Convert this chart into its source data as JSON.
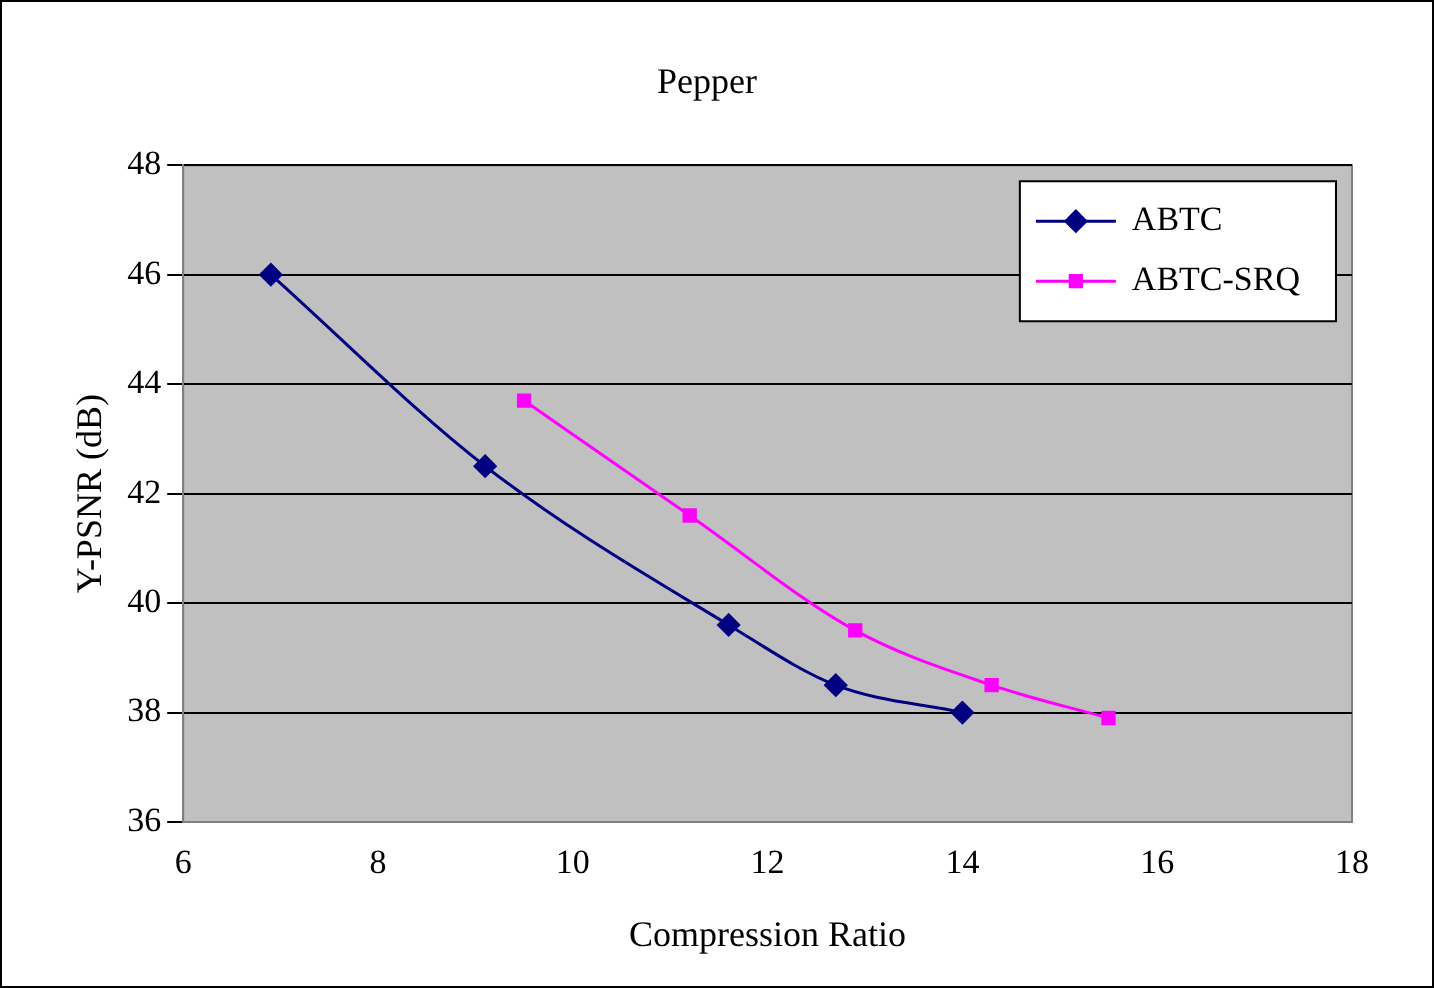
{
  "chart_data": {
    "type": "line",
    "title": "Pepper",
    "xlabel": "Compression Ratio",
    "ylabel": "Y-PSNR (dB)",
    "xlim": [
      6,
      18
    ],
    "xticks": [
      6,
      8,
      10,
      12,
      14,
      16,
      18
    ],
    "ylim": [
      36,
      48
    ],
    "yticks": [
      36,
      38,
      40,
      42,
      44,
      46,
      48
    ],
    "grid": "y",
    "legend": "top right",
    "series": [
      {
        "name": "ABTC",
        "color": "#000080",
        "marker": "diamond",
        "x": [
          6.9,
          9.1,
          11.6,
          12.7,
          14.0
        ],
        "values": [
          46.0,
          42.5,
          39.6,
          38.5,
          38.0
        ]
      },
      {
        "name": "ABTC-SRQ",
        "color": "#ff00ff",
        "marker": "square",
        "x": [
          9.5,
          11.2,
          12.9,
          14.3,
          15.5
        ],
        "values": [
          43.7,
          41.6,
          39.5,
          38.5,
          37.9
        ]
      }
    ]
  }
}
